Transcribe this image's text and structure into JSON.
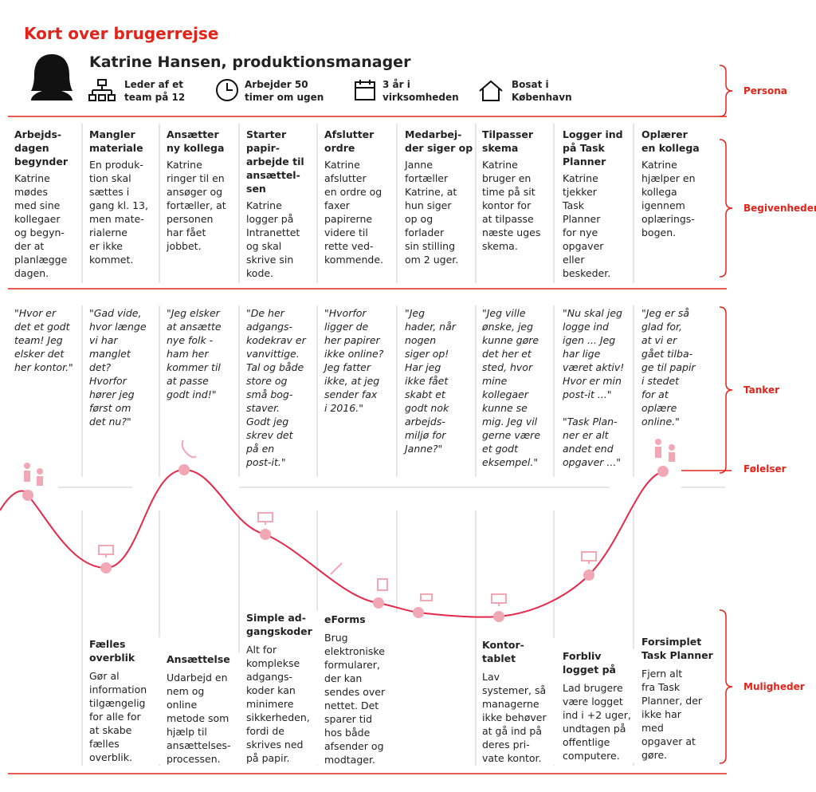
{
  "title": "Kort over brugerrejse",
  "persona": {
    "name": "Katrine Hansen, produktionsmanager",
    "facts": [
      "Leder af et\nteam på 12",
      "Arbejder 50\ntimer om ugen",
      "3 år i\nvirksomheden",
      "Bosat i\nKøbenhavn"
    ]
  },
  "sections": [
    "Persona",
    "Begivenheder",
    "Tanker",
    "Følelser",
    "Muligheder"
  ],
  "columns": [
    {
      "event_title": "Arbejds-\ndagen\nbegynder",
      "event_text": "Katrine\nmødes\nmed sine\nkollegaer\nog begyn-\nder at\nplanlægge\ndagen.",
      "thought": "\"Hvor er\ndet et godt\nteam! Jeg\nelsker det\nher kontor.\""
    },
    {
      "event_title": "Mangler\nmateriale",
      "event_text": "En produk-\ntion skal\nsættes i\ngang kl. 13,\nmen mate-\nrialerne\ner ikke\nkommet.",
      "thought": "\"Gad vide,\nhvor længe\nvi har\nmanglet\ndet?\nHvorfor\nhører jeg\nførst om\ndet nu?\"",
      "opportunity_title": "Fælles\noverblik",
      "opportunity_text": "Gør al\ninformation\ntilgængelig\nfor alle for\nat skabe\nfælles\noverblik."
    },
    {
      "event_title": "Ansætter\nny kollega",
      "event_text": "Katrine\nringer til en\nansøger og\nfortæller, at\npersonen\nhar fået\njobbet.",
      "thought": "\"Jeg elsker\nat ansætte\nnye folk -\nham her\nkommer til\nat passe\ngodt ind!\"",
      "opportunity_title": "Ansættelse",
      "opportunity_text": "Udarbejd en\nnem og\nonline\nmetode som\nhjælp til\nansættelses-\nprocessen."
    },
    {
      "event_title": "Starter\npapir-\narbejde til\nansættel-\nsen",
      "event_text": "Katrine\nlogger på\nIntranettet\nog skal\nskrive sin\nkode.",
      "thought": "\"De her\nadgangs-\nkodekrav er\nvanvittige.\nTal og både\nstore og\nsmå bog-\nstaver.\nGodt jeg\nskrev det\npå en\npost-it.\"",
      "opportunity_title": "Simple ad-\ngangskoder",
      "opportunity_text": "Alt for\nkomplekse\nadgangs-\nkoder kan\nminimere\nsikkerheden,\nfordi de\nskrives ned\npå papir."
    },
    {
      "event_title": "Afslutter\nordre",
      "event_text": "Katrine\nafslutter\nen ordre og\nfaxer\npapirerne\nvidere til\nrette ved-\nkommende.",
      "thought": "\"Hvorfor\nligger de\nher papirer\nikke online?\nJeg fatter\nikke, at jeg\nsender fax\ni 2016.\"",
      "opportunity_title": "eForms",
      "opportunity_text": "Brug\nelektroniske\nformularer,\nder kan\nsendes over\nnettet. Det\nsparer tid\nhos både\nafsender og\nmodtager."
    },
    {
      "event_title": "Medarbej-\nder siger op",
      "event_text": "Janne\nfortæller\nKatrine, at\nhun siger\nop og\nforlader\nsin stilling\nom 2 uger.",
      "thought": "\"Jeg\nhader, når\nnogen\nsiger op!\nHar jeg\nikke fået\nskabt et\ngodt nok\narbejds-\nmiljø for\nJanne?\""
    },
    {
      "event_title": "Tilpasser\nskema",
      "event_text": "Katrine\nbruger en\ntime på sit\nkontor for\nat tilpasse\nnæste uges\nskema.",
      "thought": "\"Jeg ville\nønske, jeg\nkunne gøre\ndet her et\nsted, hvor\nmine\nkollegaer\nkunne se\nmig. Jeg vil\ngerne være\net godt\neksempel.\"",
      "opportunity_title": "Kontor-\ntablet",
      "opportunity_text": "Lav\nsystemer, så\nmanagerne\nikke behøver\nat gå ind på\nderes pri-\nvate kontor."
    },
    {
      "event_title": "Logger ind\npå Task\nPlanner",
      "event_text": "Katrine\ntjekker\nTask\nPlanner\nfor nye\nopgaver\neller\nbeskeder.",
      "thought": "\"Nu skal jeg\nlogge ind\nigen ... Jeg\nhar lige\nværet aktiv!\nHvor er min\npost-it ...\"\n\n\"Task Plan-\nner er alt\nandet end\nopgaver ...\"",
      "opportunity_title": "Forbliv\nlogget på",
      "opportunity_text": "Lad brugere\nvære logget\nind i +2 uger,\nundtagen på\noffentlige\ncomputere."
    },
    {
      "event_title": "Oplærer\nen kollega",
      "event_text": "Katrine\nhjælper en\nkollega\nigennem\noplærings-\nbogen.",
      "thought": "\"Jeg er så\nglad for,\nat vi er\ngået tilba-\nge til papir\ni stedet\nfor at\noplære\nonline.\"",
      "opportunity_title": "Forsimplet\nTask Planner",
      "opportunity_text": "Fjern alt\nfra Task\nPlanner, der\nikke har\nmed\nopgaver at\ngøre."
    }
  ]
}
